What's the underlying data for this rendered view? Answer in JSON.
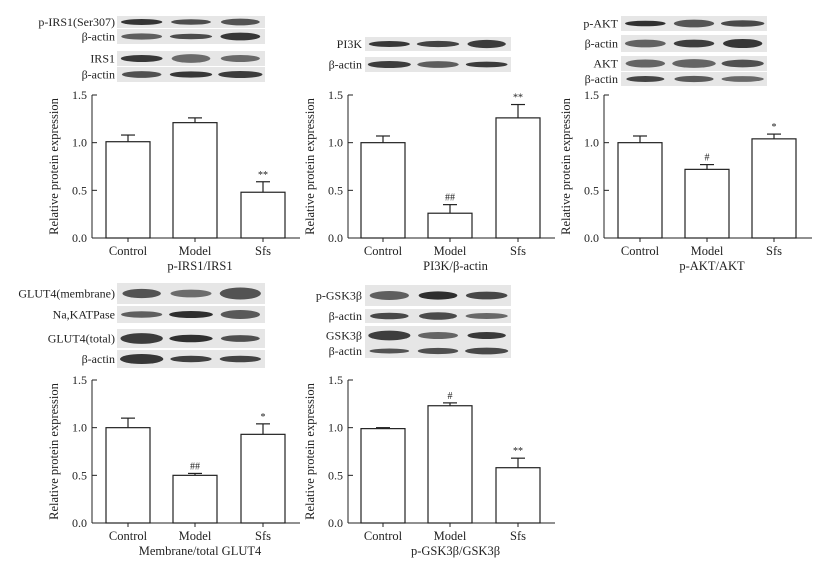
{
  "chart_data": [
    {
      "type": "bar",
      "categories": [
        "Control",
        "Model",
        "Sfs"
      ],
      "values": [
        1.01,
        1.21,
        0.48
      ],
      "errors": [
        0.07,
        0.05,
        0.11
      ],
      "significance": [
        "",
        "",
        "**"
      ],
      "ylabel": "Relative protein expression",
      "xlabel": "p-IRS1/IRS1",
      "ylim": [
        0,
        1.5
      ],
      "yticks": [
        "0.0",
        "0.5",
        "1.0",
        "1.5"
      ],
      "blot_labels": [
        "p-IRS1(Ser307)",
        "β-actin",
        "IRS1",
        "β-actin"
      ]
    },
    {
      "type": "bar",
      "categories": [
        "Control",
        "Model",
        "Sfs"
      ],
      "values": [
        1.0,
        0.26,
        1.26
      ],
      "errors": [
        0.07,
        0.09,
        0.14
      ],
      "significance": [
        "",
        "##",
        "**"
      ],
      "ylabel": "Relative protein expression",
      "xlabel": "PI3K/β-actin",
      "ylim": [
        0,
        1.5
      ],
      "yticks": [
        "0.0",
        "0.5",
        "1.0",
        "1.5"
      ],
      "blot_labels": [
        "PI3K",
        "β-actin"
      ]
    },
    {
      "type": "bar",
      "categories": [
        "Control",
        "Model",
        "Sfs"
      ],
      "values": [
        1.0,
        0.72,
        1.04
      ],
      "errors": [
        0.07,
        0.05,
        0.05
      ],
      "significance": [
        "",
        "#",
        "*"
      ],
      "ylabel": "Relative protein expression",
      "xlabel": "p-AKT/AKT",
      "ylim": [
        0,
        1.5
      ],
      "yticks": [
        "0.0",
        "0.5",
        "1.0",
        "1.5"
      ],
      "blot_labels": [
        "p-AKT",
        "β-actin",
        "AKT",
        "β-actin"
      ]
    },
    {
      "type": "bar",
      "categories": [
        "Control",
        "Model",
        "Sfs"
      ],
      "values": [
        1.0,
        0.5,
        0.93
      ],
      "errors": [
        0.1,
        0.02,
        0.11
      ],
      "significance": [
        "",
        "##",
        "*"
      ],
      "ylabel": "Relative protein expression",
      "xlabel": "Membrane/total GLUT4",
      "ylim": [
        0,
        1.5
      ],
      "yticks": [
        "0.0",
        "0.5",
        "1.0",
        "1.5"
      ],
      "blot_labels": [
        "GLUT4(membrane)",
        "Na,KATPase",
        "GLUT4(total)",
        "β-actin"
      ]
    },
    {
      "type": "bar",
      "categories": [
        "Control",
        "Model",
        "Sfs"
      ],
      "values": [
        0.99,
        1.23,
        0.58
      ],
      "errors": [
        0.01,
        0.03,
        0.1
      ],
      "significance": [
        "",
        "#",
        "**"
      ],
      "ylabel": "Relative protein expression",
      "xlabel": "p-GSK3β/GSK3β",
      "ylim": [
        0,
        1.5
      ],
      "yticks": [
        "0.0",
        "0.5",
        "1.0",
        "1.5"
      ],
      "blot_labels": [
        "p-GSK3β",
        "β-actin",
        "GSK3β",
        "β-actin"
      ]
    }
  ]
}
